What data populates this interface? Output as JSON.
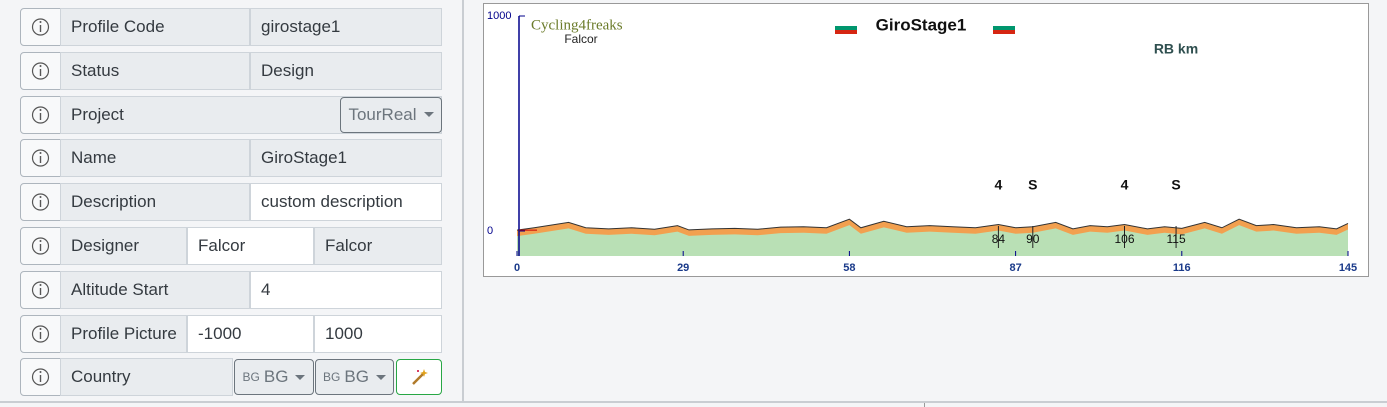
{
  "form": {
    "rows": [
      {
        "label": "Profile Code",
        "values": [
          "girostage1"
        ]
      },
      {
        "label": "Status",
        "values": [
          "Design"
        ]
      },
      {
        "label": "Project",
        "buttons": [
          {
            "label": "TourReal"
          }
        ]
      },
      {
        "label": "Name",
        "values": [
          "GiroStage1"
        ]
      },
      {
        "label": "Description",
        "values": [
          "custom description"
        ]
      },
      {
        "label": "Designer",
        "values": [
          "Falcor",
          "Falcor"
        ]
      },
      {
        "label": "Altitude Start",
        "values": [
          "4"
        ]
      },
      {
        "label": "Profile Picture",
        "values": [
          "-1000",
          "1000"
        ]
      },
      {
        "label": "Country",
        "buttons": [
          {
            "code": "BG",
            "label": "BG"
          },
          {
            "code": "BG",
            "label": "BG"
          }
        ]
      }
    ]
  },
  "chart_data": {
    "type": "area",
    "logo": "Cycling4freaks",
    "author": "Falcor",
    "title": "GiroStage1",
    "subtitle": "RB km",
    "x": [
      0,
      3,
      9,
      12,
      16,
      20,
      24,
      28,
      30,
      34,
      38,
      42,
      46,
      50,
      54,
      58,
      60,
      64,
      68,
      72,
      76,
      80,
      84,
      87,
      90,
      94,
      97,
      100,
      103,
      106,
      110,
      113,
      116,
      120,
      123,
      126,
      129,
      132,
      136,
      140,
      143,
      145
    ],
    "values": [
      4,
      15,
      40,
      15,
      10,
      15,
      8,
      25,
      5,
      10,
      12,
      8,
      18,
      20,
      15,
      55,
      15,
      45,
      20,
      25,
      20,
      15,
      30,
      15,
      20,
      40,
      10,
      25,
      20,
      30,
      10,
      20,
      12,
      40,
      15,
      55,
      25,
      30,
      15,
      20,
      10,
      35
    ],
    "xlim": [
      0,
      145
    ],
    "xticks": [
      0,
      29,
      58,
      87,
      116,
      145
    ],
    "ylim": [
      0,
      1000
    ],
    "yticks": [
      0,
      1000
    ],
    "markers": [
      {
        "km": 84,
        "label": "4"
      },
      {
        "km": 90,
        "label": "S"
      },
      {
        "km": 106,
        "label": "4"
      },
      {
        "km": 115,
        "label": "S"
      }
    ]
  }
}
